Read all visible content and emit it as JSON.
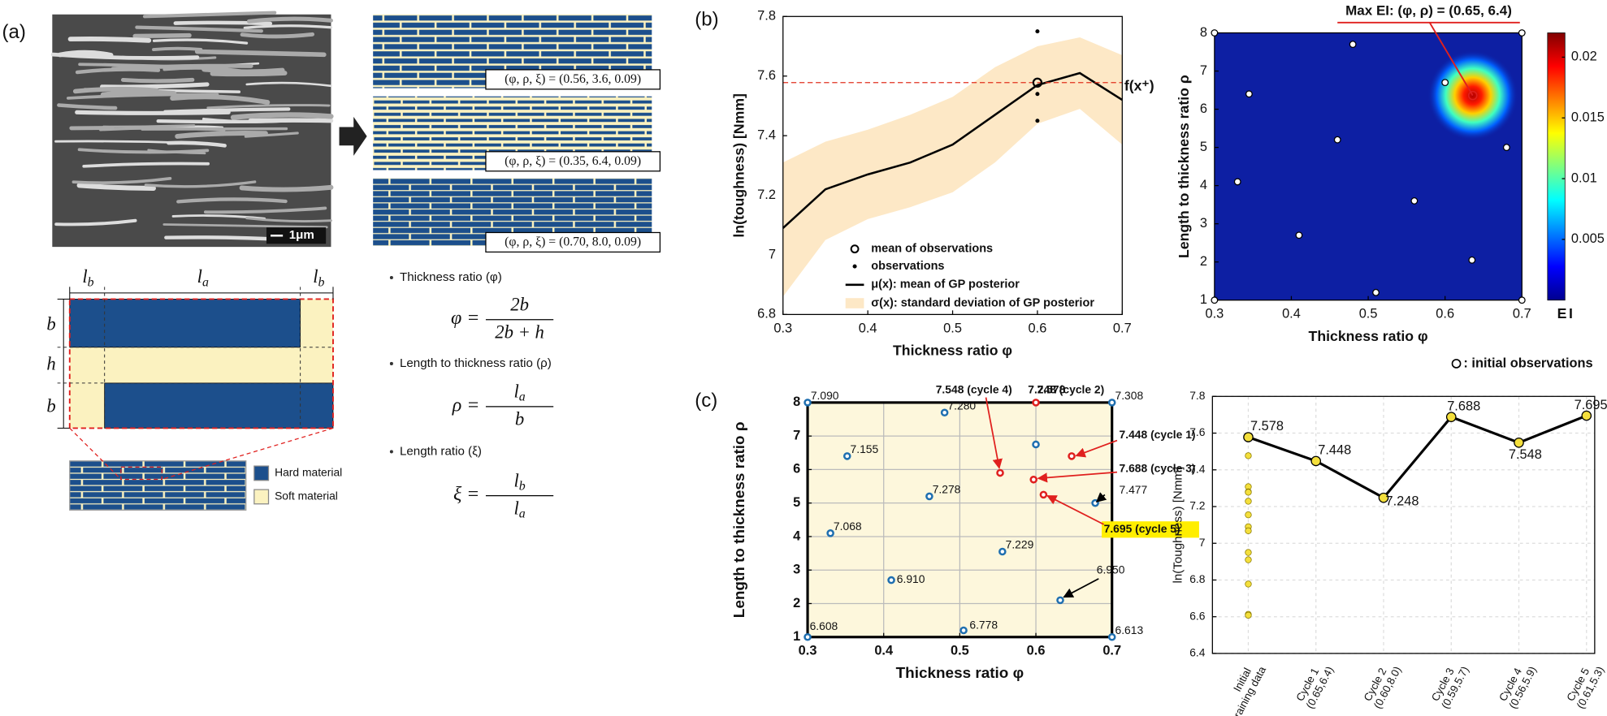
{
  "panel_labels": [
    "(a)",
    "(b)",
    "(c)"
  ],
  "panel_a": {
    "scale_bar": "1μm",
    "brick_labels": [
      "(φ, ρ, ξ) = (0.56, 3.6, 0.09)",
      "(φ, ρ, ξ) = (0.35, 6.4, 0.09)",
      "(φ, ρ, ξ) = (0.70, 8.0, 0.09)"
    ],
    "schematic": {
      "top_labels": [
        {
          "base": "l",
          "sub": "b"
        },
        {
          "base": "l",
          "sub": "a"
        },
        {
          "base": "l",
          "sub": "b"
        }
      ],
      "side_labels": [
        "b",
        "h",
        "b"
      ]
    },
    "legend": [
      {
        "name": "Hard material",
        "color": "#1c4f8c"
      },
      {
        "name": "Soft material",
        "color": "#fbf2c0"
      }
    ],
    "definitions": [
      {
        "title": "Thickness ratio (φ)",
        "lhs": "φ =",
        "numerator": {
          "base": "2b"
        },
        "denominator": {
          "base": "2b + h"
        }
      },
      {
        "title": "Length to thickness ratio (ρ)",
        "lhs": "ρ =",
        "numerator": {
          "base": "l",
          "sub": "a"
        },
        "denominator": {
          "base": "b"
        }
      },
      {
        "title": "Length ratio (ξ)",
        "lhs": "ξ =",
        "numerator": {
          "base": "l",
          "sub": "b"
        },
        "denominator": {
          "base": "l",
          "sub": "a"
        }
      }
    ]
  },
  "chart_data": [
    {
      "type": "line",
      "xlabel": "Thickness ratio φ",
      "ylabel": "ln(toughness)  [Nmm]",
      "x": [
        0.3,
        0.35,
        0.4,
        0.45,
        0.5,
        0.55,
        0.6,
        0.65,
        0.7
      ],
      "xlim": [
        0.3,
        0.7
      ],
      "ylim": [
        6.8,
        7.8
      ],
      "xticks": [
        0.3,
        0.4,
        0.5,
        0.6,
        0.7
      ],
      "yticks": [
        6.8,
        7,
        7.2,
        7.4,
        7.6,
        7.8
      ],
      "observation_mean": {
        "name": "mean of observations",
        "x": 0.6,
        "y": 7.578
      },
      "observations": {
        "name": "observations",
        "x": [
          0.6,
          0.6,
          0.6
        ],
        "y": [
          7.75,
          7.54,
          7.45
        ]
      },
      "mean": {
        "name": "μ(x): mean of GP posterior",
        "color": "#000000",
        "values": [
          7.09,
          7.22,
          7.27,
          7.31,
          7.37,
          7.47,
          7.57,
          7.61,
          7.52
        ]
      },
      "band": {
        "name": "σ(x): standard deviation of GP posterior",
        "color": "#fde8c6",
        "upper": [
          7.31,
          7.38,
          7.42,
          7.47,
          7.53,
          7.63,
          7.7,
          7.73,
          7.67
        ],
        "lower": [
          6.86,
          7.05,
          7.12,
          7.16,
          7.21,
          7.31,
          7.44,
          7.49,
          7.37
        ]
      },
      "incumbent": {
        "label": "f(x⁺)",
        "value": 7.578,
        "color": "#e0301e"
      }
    },
    {
      "type": "heatmap",
      "title": "Max EI: (φ, ρ) = (0.65, 6.4)",
      "xlabel": "Thickness ratio φ",
      "ylabel": "Length to thickness ratio ρ",
      "xlim": [
        0.3,
        0.7
      ],
      "ylim": [
        1,
        8
      ],
      "xticks": [
        0.3,
        0.4,
        0.5,
        0.6,
        0.7
      ],
      "yticks": [
        1,
        2,
        3,
        4,
        5,
        6,
        7,
        8
      ],
      "peak": {
        "x": 0.636,
        "y": 6.36,
        "value": 0.022
      },
      "clim": [
        0,
        0.022
      ],
      "cticks": [
        0.005,
        0.01,
        0.015,
        0.02
      ],
      "clabel": "EI",
      "points": {
        "name": ": initial observations",
        "x": [
          0.3,
          0.345,
          0.33,
          0.46,
          0.41,
          0.3,
          0.51,
          0.56,
          0.48,
          0.6,
          0.7,
          0.68,
          0.635,
          0.7
        ],
        "y": [
          8,
          6.4,
          4.1,
          5.2,
          2.7,
          1,
          1.2,
          3.6,
          7.7,
          6.7,
          8,
          5,
          2.05,
          1
        ]
      }
    },
    {
      "type": "scatter",
      "xlabel": "Thickness ratio φ",
      "ylabel": "Length to thickness ratio ρ",
      "xlim": [
        0.3,
        0.7
      ],
      "ylim": [
        1,
        8
      ],
      "xticks": [
        0.3,
        0.4,
        0.5,
        0.6,
        0.7
      ],
      "yticks": [
        1,
        2,
        3,
        4,
        5,
        6,
        7,
        8
      ],
      "grid": true,
      "series": [
        {
          "color": "#1f6fb0",
          "x": [
            0.3,
            0.352,
            0.33,
            0.46,
            0.41,
            0.3,
            0.505,
            0.556,
            0.48,
            0.6,
            0.7,
            0.678,
            0.632,
            0.7
          ],
          "y": [
            8,
            6.4,
            4.1,
            5.2,
            2.7,
            1,
            1.2,
            3.55,
            7.7,
            6.75,
            8,
            5,
            2.1,
            1
          ],
          "values": [
            7.09,
            7.155,
            7.068,
            7.278,
            6.91,
            6.608,
            6.778,
            7.229,
            7.28,
            7.578,
            7.308,
            7.477,
            6.95,
            6.613
          ],
          "value_labels": [
            "7.090",
            "7.155",
            "7.068",
            "7.278",
            "6.910",
            "6.608",
            "6.778",
            "7.229",
            "7.280",
            "7.578",
            "7.308",
            "7.477",
            "6.950",
            "6.613"
          ]
        },
        {
          "color": "#e0201e",
          "x": [
            0.647,
            0.6,
            0.597,
            0.553,
            0.61
          ],
          "y": [
            6.4,
            8,
            5.7,
            5.9,
            5.25
          ],
          "values": [
            7.448,
            7.248,
            7.688,
            7.548,
            7.695
          ],
          "value_labels": [
            "7.448 (cycle 1)",
            "7.248 (cycle 2)",
            "7.688 (cycle 3)",
            "7.548 (cycle 4)",
            "7.695 (cycle 5)"
          ]
        }
      ]
    },
    {
      "type": "line",
      "ylabel": "ln(Toughness) [Nmm]",
      "categories": [
        [
          "Initial",
          "training data"
        ],
        [
          "Cycle 1",
          "(0.65,6.4)"
        ],
        [
          "Cycle 2",
          "(0.60,8.0)"
        ],
        [
          "Cycle 3",
          "(0.59,5.7)"
        ],
        [
          "Cycle 4",
          "(0.56,5.9)"
        ],
        [
          "Cycle 5",
          "(0.61,5.3)"
        ]
      ],
      "ylim": [
        6.4,
        7.8
      ],
      "yticks": [
        6.4,
        6.6,
        6.8,
        7,
        7.2,
        7.4,
        7.6,
        7.8
      ],
      "grid": true,
      "series": [
        {
          "color": "#f4df3c",
          "values": [
            7.578,
            7.448,
            7.248,
            7.688,
            7.548,
            7.695
          ]
        }
      ],
      "initial": {
        "color": "#f4df3c",
        "values": [
          7.578,
          7.477,
          7.308,
          7.28,
          7.278,
          7.229,
          7.155,
          7.09,
          7.068,
          6.95,
          6.91,
          6.778,
          6.613,
          6.608
        ]
      }
    }
  ]
}
